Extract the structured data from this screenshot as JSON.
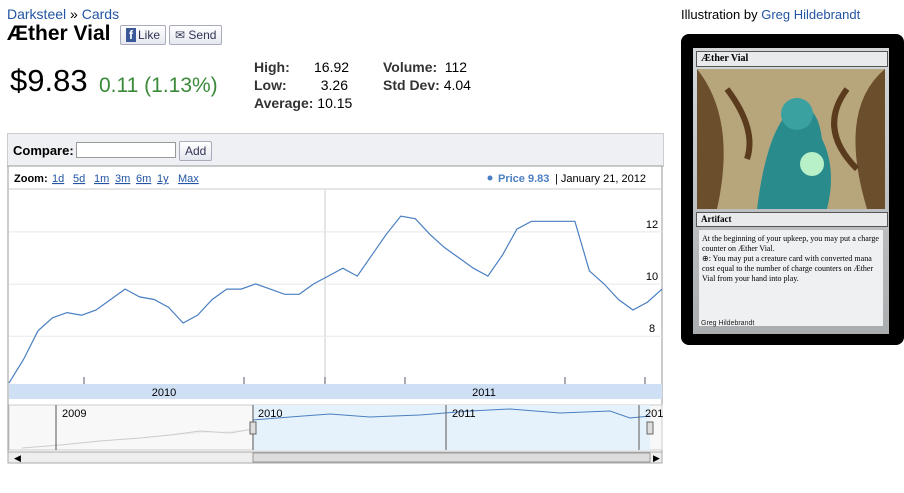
{
  "breadcrumb": [
    "Darksteel",
    "Cards"
  ],
  "title": "Æther Vial",
  "like": "Like",
  "send": "Send",
  "price": "$9.83",
  "change": "0.11 (1.13%)",
  "stats": [
    {
      "label": "High:",
      "value": "16.92"
    },
    {
      "label": "Low:",
      "value": "3.26"
    },
    {
      "label": "Average:",
      "value": "10.15"
    },
    {
      "label": "Volume:",
      "value": "112"
    },
    {
      "label": "Std Dev:",
      "value": "4.04"
    }
  ],
  "compare": {
    "label": "Compare:",
    "button": "Add"
  },
  "zoom": {
    "label": "Zoom:",
    "options": [
      "1d",
      "5d",
      "1m",
      "3m",
      "6m",
      "1y",
      "Max"
    ]
  },
  "legend": {
    "series": "Price 9.83",
    "date": "January 21, 2012"
  },
  "chart_data": {
    "type": "line",
    "color": "#4a7fc1",
    "values": [
      5.9,
      6.8,
      7.9,
      8.4,
      8.6,
      8.5,
      8.7,
      9.1,
      9.5,
      9.2,
      9.1,
      8.8,
      8.2,
      8.5,
      9.1,
      9.5,
      9.5,
      9.7,
      9.5,
      9.3,
      9.3,
      9.7,
      10.0,
      10.3,
      10.0,
      10.8,
      11.6,
      12.3,
      12.2,
      11.6,
      11.1,
      10.7,
      10.3,
      10.0,
      10.8,
      11.8,
      12.1,
      12.1,
      12.1,
      12.1,
      10.2,
      9.7,
      9.1,
      8.7,
      9.0,
      9.5
    ],
    "ylim": [
      5.9,
      13.3
    ],
    "yticks": [
      8,
      10,
      12
    ],
    "grid": true,
    "x_labels": [
      "2010",
      "2011"
    ]
  },
  "navigator_labels": [
    "2009",
    "2010",
    "2011",
    "201"
  ],
  "illustration": {
    "prefix": "Illustration by",
    "artist": "Greg Hildebrandt"
  },
  "card": {
    "name": "Æther Vial",
    "type_line": "Artifact",
    "rules": [
      "At the beginning of your upkeep, you may put a charge counter on Æther Vial.",
      ": You may put a creature card with converted mana cost equal to the number of charge counters on Æther Vial from your hand into play."
    ],
    "artist": "Greg Hildebrandt"
  }
}
